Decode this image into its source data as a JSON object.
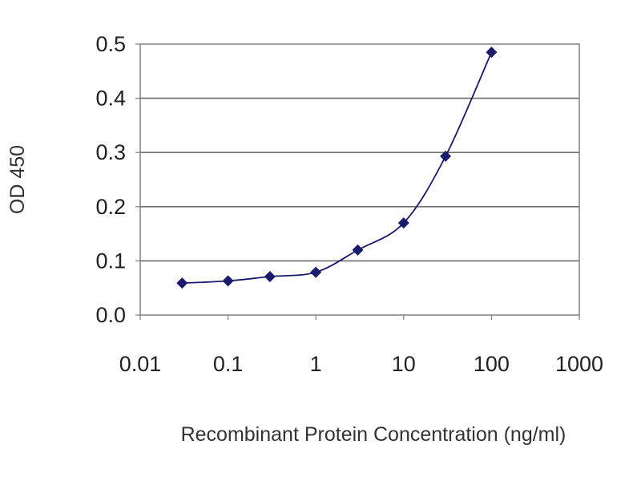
{
  "chart_data": {
    "type": "scatter",
    "title": "",
    "xlabel": "Recombinant Protein Concentration (ng/ml)",
    "ylabel": "OD 450",
    "x_scale": "log",
    "xlim": [
      0.01,
      1000
    ],
    "ylim": [
      0,
      0.5
    ],
    "x_ticks": [
      "0.01",
      "0.1",
      "1",
      "10",
      "100",
      "1000"
    ],
    "y_ticks": [
      "0.0",
      "0.1",
      "0.2",
      "0.3",
      "0.4",
      "0.5"
    ],
    "grid": "horizontal",
    "legend": "none",
    "series": [
      {
        "x": [
          0.03,
          0.1,
          0.3,
          1,
          3,
          10,
          30,
          100
        ],
        "y": [
          0.059,
          0.063,
          0.071,
          0.079,
          0.12,
          0.17,
          0.293,
          0.485
        ]
      }
    ],
    "colors": {
      "series": "#1a1a6e",
      "plot_background": "#ffffff",
      "gridline": "#6e6e6e",
      "plot_border": "#808080"
    }
  }
}
